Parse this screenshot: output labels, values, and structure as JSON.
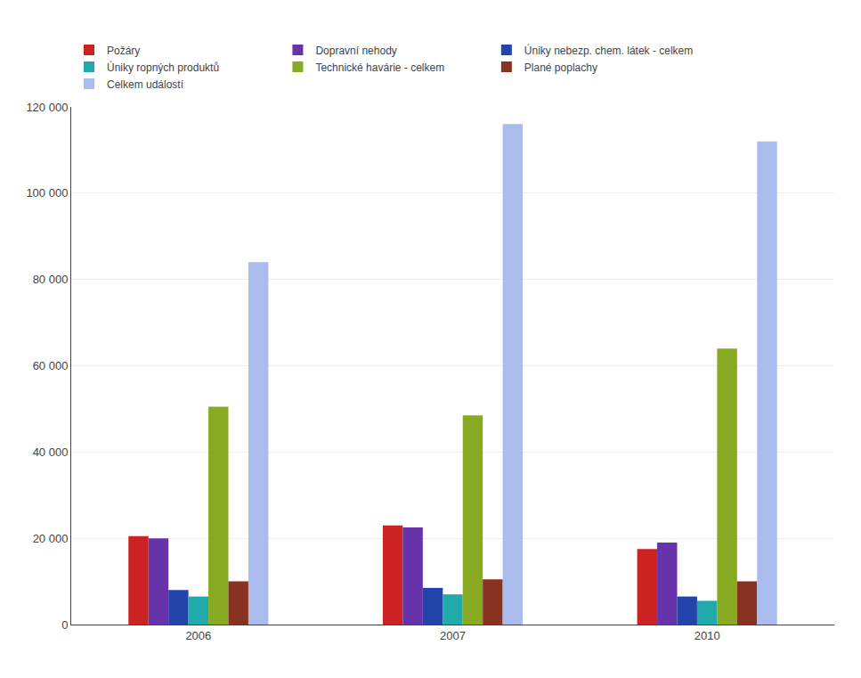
{
  "chart_data": {
    "type": "bar",
    "categories": [
      "2006",
      "2007",
      "2010"
    ],
    "series": [
      {
        "name": "Požáry",
        "color": "#CC2222",
        "values": [
          20500,
          23000,
          17500
        ]
      },
      {
        "name": "Dopravní nehody",
        "color": "#6633AA",
        "values": [
          20000,
          22500,
          19000
        ]
      },
      {
        "name": "Úniky nebezp. chem. látek - celkem",
        "color": "#2244AA",
        "values": [
          8000,
          8500,
          6500
        ]
      },
      {
        "name": "Úniky ropných produktů",
        "color": "#22AAAA",
        "values": [
          6500,
          7000,
          5500
        ]
      },
      {
        "name": "Technické havárie - celkem",
        "color": "#88AA22",
        "values": [
          50500,
          48500,
          64000
        ]
      },
      {
        "name": "Plané poplachy",
        "color": "#883322",
        "values": [
          10000,
          10500,
          10000
        ]
      },
      {
        "name": "Celkem událostí",
        "color": "#AABBEE",
        "values": [
          84000,
          116000,
          112000
        ]
      }
    ],
    "ylim": [
      0,
      120000
    ],
    "yticks": [
      0,
      {
        "value": 20000,
        "label": "20 000"
      },
      {
        "value": 40000,
        "label": "40 000"
      },
      {
        "value": 60000,
        "label": "60 000"
      },
      {
        "value": 80000,
        "label": "80 000"
      },
      {
        "value": 100000,
        "label": "100 000"
      },
      {
        "value": 120000,
        "label": "120 000"
      }
    ],
    "grid": true,
    "legend": "upper left"
  }
}
